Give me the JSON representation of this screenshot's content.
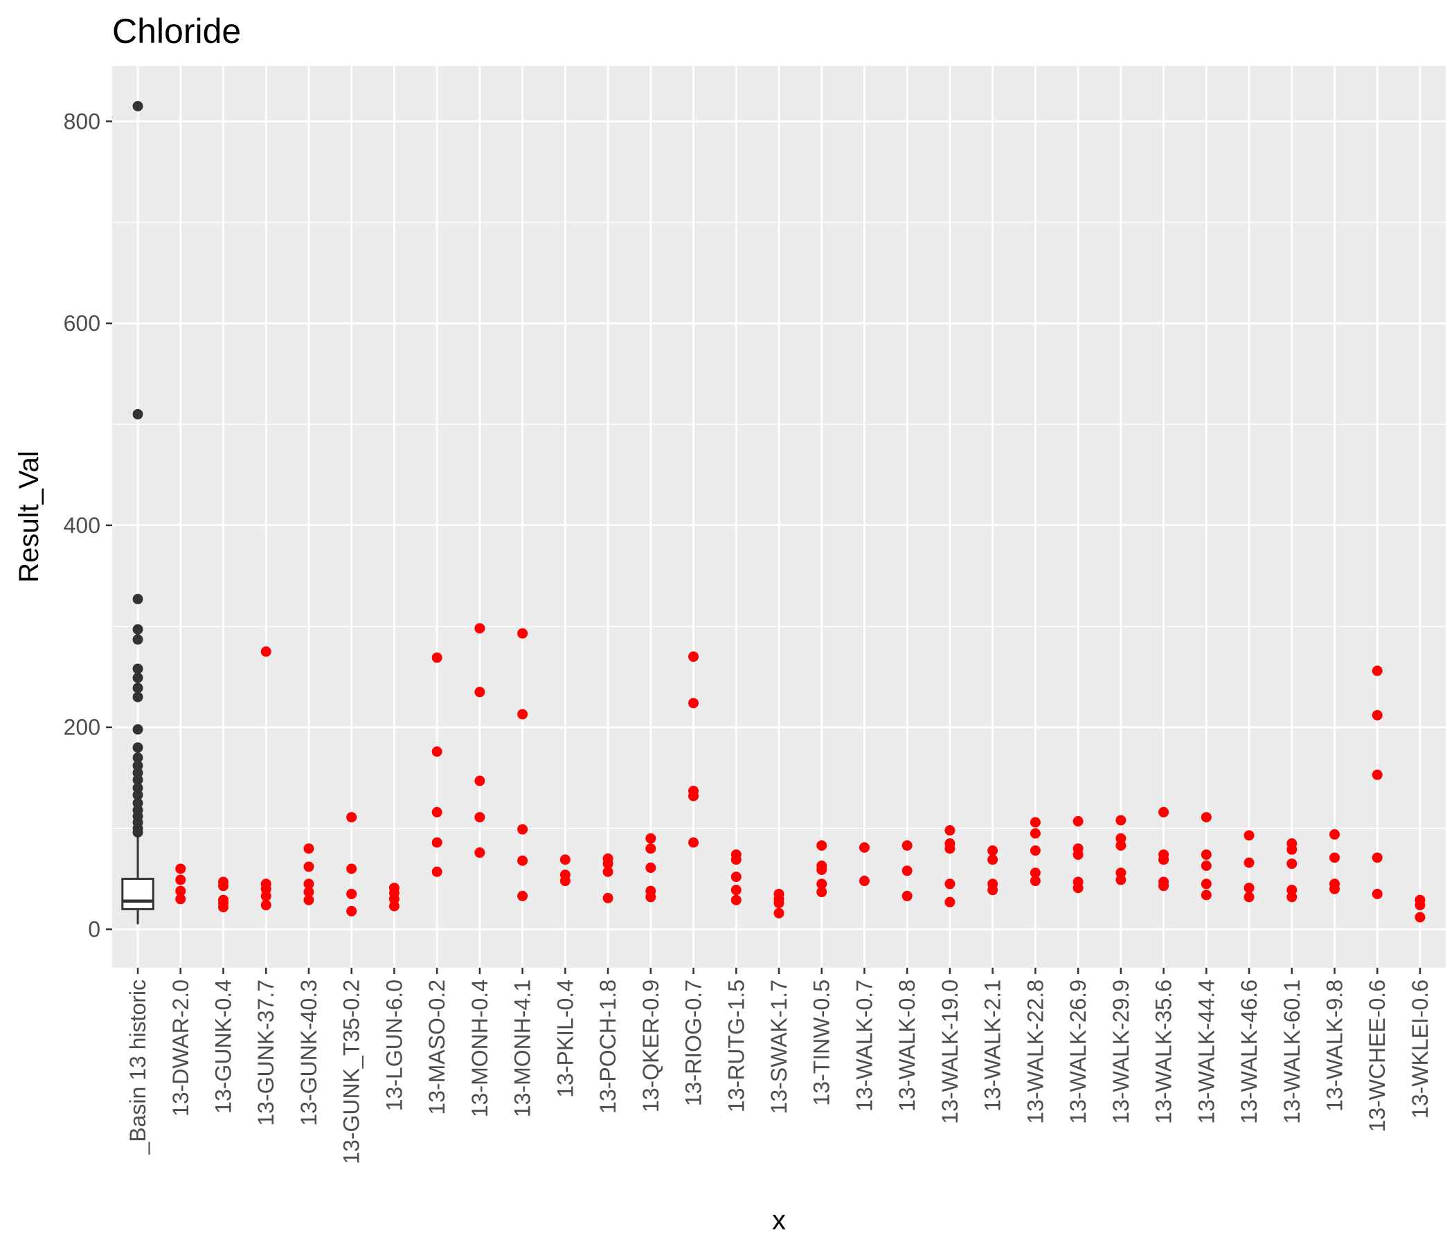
{
  "chart_data": {
    "type": "scatter",
    "title": "Chloride",
    "xlabel": "x",
    "ylabel": "Result_Val",
    "ylim": [
      -38,
      855
    ],
    "yticks": [
      0,
      200,
      400,
      600,
      800
    ],
    "categories": [
      "_Basin 13 historic",
      "13-DWAR-2.0",
      "13-GUNK-0.4",
      "13-GUNK-37.7",
      "13-GUNK-40.3",
      "13-GUNK_T35-0.2",
      "13-LGUN-6.0",
      "13-MASO-0.2",
      "13-MONH-0.4",
      "13-MONH-4.1",
      "13-PKIL-0.4",
      "13-POCH-1.8",
      "13-QKER-0.9",
      "13-RIOG-0.7",
      "13-RUTG-1.5",
      "13-SWAK-1.7",
      "13-TINW-0.5",
      "13-WALK-0.7",
      "13-WALK-0.8",
      "13-WALK-19.0",
      "13-WALK-2.1",
      "13-WALK-22.8",
      "13-WALK-26.9",
      "13-WALK-29.9",
      "13-WALK-35.6",
      "13-WALK-44.4",
      "13-WALK-46.6",
      "13-WALK-60.1",
      "13-WALK-9.8",
      "13-WCHEE-0.6",
      "13-WKLEI-0.6"
    ],
    "boxplot": {
      "category": "_Basin 13 historic",
      "lower_whisker": 5,
      "q1": 20,
      "median": 28,
      "q3": 50,
      "upper_whisker": 95,
      "outliers": [
        815,
        510,
        327,
        297,
        287,
        258,
        249,
        239,
        230,
        198,
        180,
        170,
        162,
        155,
        148,
        140,
        133,
        125,
        118,
        112,
        106,
        100,
        96
      ],
      "color": "#333333"
    },
    "series": [
      {
        "color": "#ff0000",
        "points": [
          {
            "x": "13-DWAR-2.0",
            "y": [
              30,
              38,
              49,
              60
            ]
          },
          {
            "x": "13-GUNK-0.4",
            "y": [
              22,
              26,
              29,
              43,
              47
            ]
          },
          {
            "x": "13-GUNK-37.7",
            "y": [
              24,
              33,
              40,
              45,
              275
            ]
          },
          {
            "x": "13-GUNK-40.3",
            "y": [
              29,
              37,
              45,
              62,
              80
            ]
          },
          {
            "x": "13-GUNK_T35-0.2",
            "y": [
              18,
              35,
              60,
              111
            ]
          },
          {
            "x": "13-LGUN-6.0",
            "y": [
              23,
              30,
              36,
              41
            ]
          },
          {
            "x": "13-MASO-0.2",
            "y": [
              57,
              86,
              116,
              176,
              269
            ]
          },
          {
            "x": "13-MONH-0.4",
            "y": [
              76,
              111,
              147,
              235,
              298
            ]
          },
          {
            "x": "13-MONH-4.1",
            "y": [
              33,
              68,
              99,
              213,
              293
            ]
          },
          {
            "x": "13-PKIL-0.4",
            "y": [
              48,
              54,
              69
            ]
          },
          {
            "x": "13-POCH-1.8",
            "y": [
              31,
              57,
              65,
              70
            ]
          },
          {
            "x": "13-QKER-0.9",
            "y": [
              32,
              38,
              61,
              80,
              90
            ]
          },
          {
            "x": "13-RIOG-0.7",
            "y": [
              86,
              132,
              137,
              224,
              270
            ]
          },
          {
            "x": "13-RUTG-1.5",
            "y": [
              29,
              39,
              52,
              69,
              74
            ]
          },
          {
            "x": "13-SWAK-1.7",
            "y": [
              16,
              26,
              30,
              35
            ]
          },
          {
            "x": "13-TINW-0.5",
            "y": [
              37,
              45,
              59,
              63,
              83
            ]
          },
          {
            "x": "13-WALK-0.7",
            "y": [
              48,
              81
            ]
          },
          {
            "x": "13-WALK-0.8",
            "y": [
              33,
              58,
              83
            ]
          },
          {
            "x": "13-WALK-19.0",
            "y": [
              27,
              45,
              80,
              85,
              98
            ]
          },
          {
            "x": "13-WALK-2.1",
            "y": [
              39,
              45,
              69,
              78
            ]
          },
          {
            "x": "13-WALK-22.8",
            "y": [
              48,
              56,
              78,
              95,
              106
            ]
          },
          {
            "x": "13-WALK-26.9",
            "y": [
              41,
              47,
              74,
              80,
              107
            ]
          },
          {
            "x": "13-WALK-29.9",
            "y": [
              49,
              56,
              83,
              90,
              108
            ]
          },
          {
            "x": "13-WALK-35.6",
            "y": [
              43,
              47,
              69,
              74,
              116
            ]
          },
          {
            "x": "13-WALK-44.4",
            "y": [
              34,
              45,
              63,
              74,
              111
            ]
          },
          {
            "x": "13-WALK-46.6",
            "y": [
              32,
              41,
              66,
              93
            ]
          },
          {
            "x": "13-WALK-60.1",
            "y": [
              32,
              39,
              65,
              79,
              85
            ]
          },
          {
            "x": "13-WALK-9.8",
            "y": [
              40,
              45,
              71,
              94
            ]
          },
          {
            "x": "13-WCHEE-0.6",
            "y": [
              35,
              71,
              153,
              212,
              256
            ]
          },
          {
            "x": "13-WKLEI-0.6",
            "y": [
              12,
              24,
              29
            ]
          }
        ]
      }
    ],
    "grid": true,
    "legend": "none"
  }
}
